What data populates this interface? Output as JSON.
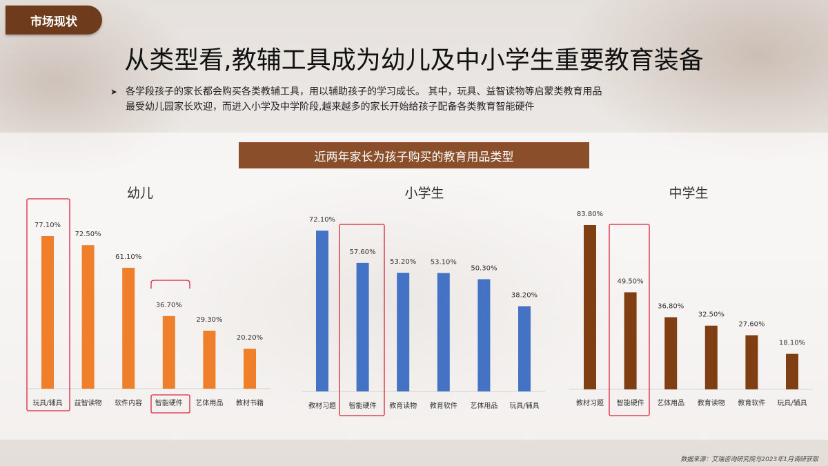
{
  "header": {
    "tag": "市场现状",
    "title": "从类型看,教辅工具成为幼儿及中小学生重要教育装备",
    "bullet_line1": "各学段孩子的家长都会购买各类教辅工具，用以辅助孩子的学习成长。 其中，玩具、益智读物等启蒙类教育用品",
    "bullet_line2": "最受幼儿园家长欢迎，而进入小学及中学阶段,越来越多的家长开始给孩子配备各类教育智能硬件"
  },
  "panel_title": "近两年家长为孩子购买的教育用品类型",
  "source": "数据来源：艾瑞咨询研究院与2023年1月调研获取",
  "colors": {
    "kindergarten": "#ef7f2a",
    "primary": "#4472c4",
    "middle": "#7f3f13",
    "highlight": "#d9223a"
  },
  "chart_data": [
    {
      "type": "bar",
      "title": "幼儿",
      "categories": [
        "玩具/辅具",
        "益智读物",
        "软件内容",
        "智能硬件",
        "艺体用品",
        "教材书籍"
      ],
      "values": [
        77.1,
        72.5,
        61.1,
        36.7,
        29.3,
        20.2
      ],
      "labels": [
        "77.10%",
        "72.50%",
        "61.10%",
        "36.70%",
        "29.30%",
        "20.20%"
      ],
      "highlighted": [
        "玩具/辅具",
        "智能硬件"
      ]
    },
    {
      "type": "bar",
      "title": "小学生",
      "categories": [
        "教材习题",
        "智能硬件",
        "教育读物",
        "教育软件",
        "艺体用品",
        "玩具/辅具"
      ],
      "values": [
        72.1,
        57.6,
        53.2,
        53.1,
        50.3,
        38.2
      ],
      "labels": [
        "72.10%",
        "57.60%",
        "53.20%",
        "53.10%",
        "50.30%",
        "38.20%"
      ],
      "highlighted": [
        "智能硬件"
      ]
    },
    {
      "type": "bar",
      "title": "中学生",
      "categories": [
        "教材习题",
        "智能硬件",
        "艺体用品",
        "教育读物",
        "教育软件",
        "玩具/辅具"
      ],
      "values": [
        83.8,
        49.5,
        36.8,
        32.5,
        27.6,
        18.1
      ],
      "labels": [
        "83.80%",
        "49.50%",
        "36.80%",
        "32.50%",
        "27.60%",
        "18.10%"
      ],
      "highlighted": [
        "智能硬件"
      ]
    }
  ]
}
